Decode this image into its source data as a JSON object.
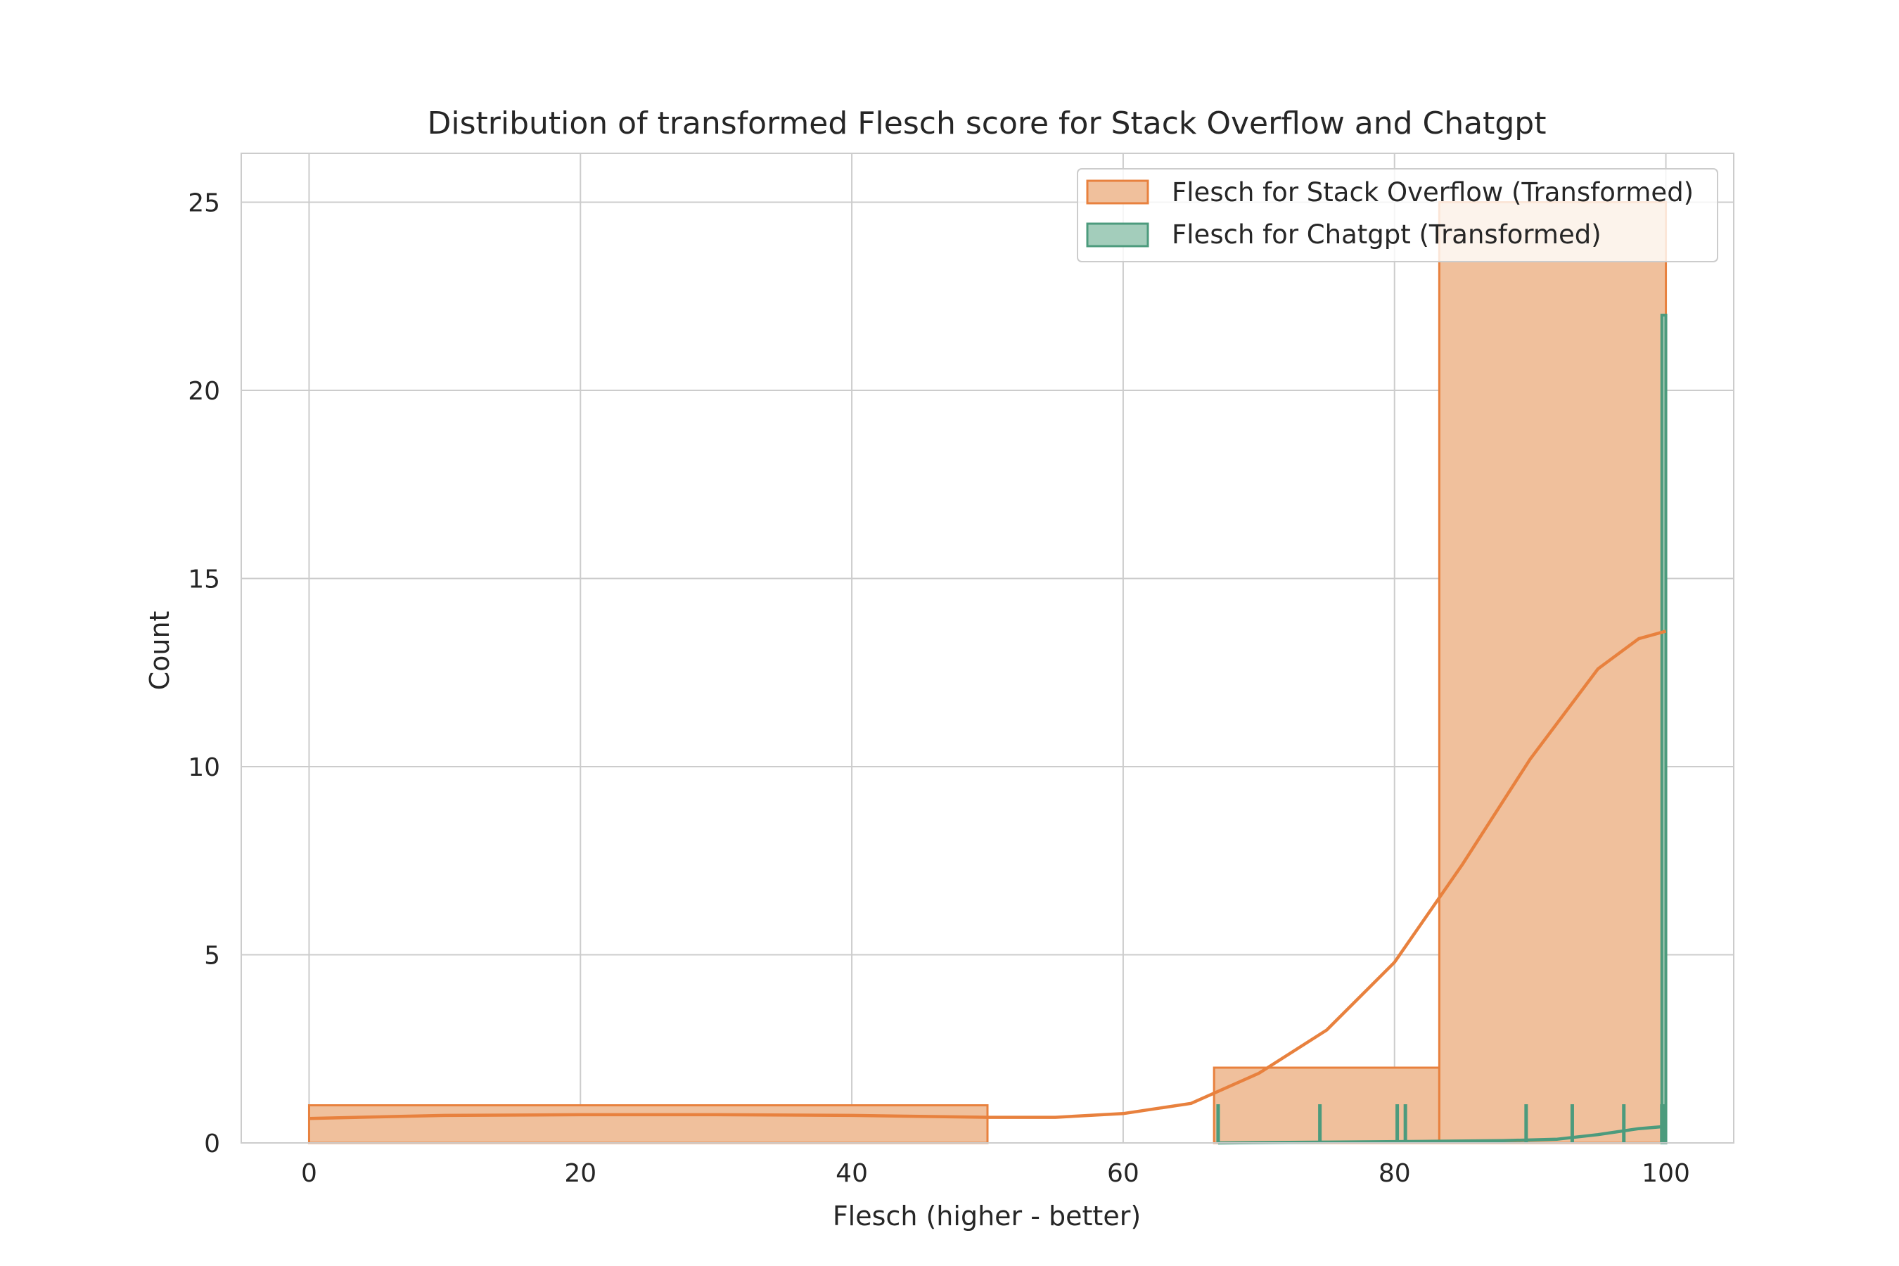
{
  "chart_data": {
    "type": "histogram",
    "title": "Distribution of transformed Flesch score for Stack Overflow and Chatgpt",
    "xlabel": "Flesch (higher - better)",
    "ylabel": "Count",
    "xlim": [
      -5,
      105
    ],
    "ylim": [
      0,
      26.3
    ],
    "xticks": [
      0,
      20,
      40,
      60,
      80,
      100
    ],
    "yticks": [
      0,
      5,
      10,
      15,
      20,
      25
    ],
    "grid": true,
    "legend_position": "top-right",
    "series": [
      {
        "name": "Flesch for Stack Overflow (Transformed)",
        "color": "#e8813e",
        "fill_color": "#f0c09c",
        "bins": [
          {
            "x0": 0,
            "x1": 50,
            "count": 1
          },
          {
            "x0": 66.7,
            "x1": 83.3,
            "count": 2
          },
          {
            "x0": 83.3,
            "x1": 100,
            "count": 25
          }
        ],
        "kde": [
          [
            0,
            0.65
          ],
          [
            10,
            0.73
          ],
          [
            20,
            0.75
          ],
          [
            30,
            0.75
          ],
          [
            40,
            0.73
          ],
          [
            50,
            0.68
          ],
          [
            55,
            0.68
          ],
          [
            60,
            0.78
          ],
          [
            65,
            1.05
          ],
          [
            70,
            1.85
          ],
          [
            75,
            3.0
          ],
          [
            80,
            4.8
          ],
          [
            85,
            7.4
          ],
          [
            90,
            10.2
          ],
          [
            95,
            12.6
          ],
          [
            98,
            13.4
          ],
          [
            100,
            13.6
          ]
        ]
      },
      {
        "name": "Flesch for Chatgpt (Transformed)",
        "color": "#4c9b7d",
        "fill_color": "#a3cdbb",
        "bins": [
          {
            "x0": 99.7,
            "x1": 100,
            "count": 22
          }
        ],
        "rug": [
          67,
          74.5,
          80.2,
          80.8,
          89.7,
          93.1,
          96.9,
          99.7,
          99.9
        ],
        "kde": [
          [
            67,
            0.0
          ],
          [
            75,
            0.02
          ],
          [
            82,
            0.04
          ],
          [
            88,
            0.06
          ],
          [
            92,
            0.1
          ],
          [
            95,
            0.22
          ],
          [
            98,
            0.38
          ],
          [
            100,
            0.44
          ]
        ]
      }
    ]
  }
}
